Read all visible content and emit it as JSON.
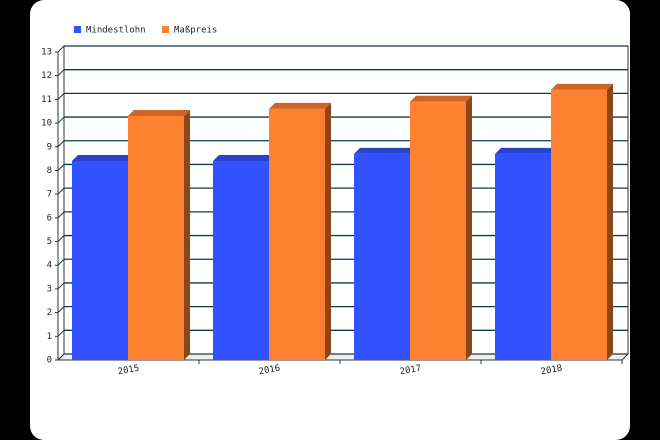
{
  "chart_data": {
    "type": "bar3d",
    "categories": [
      "2015",
      "2016",
      "2017",
      "2018"
    ],
    "series": [
      {
        "name": "Mindestlohn",
        "color": "#3352ff",
        "values": [
          8.4,
          8.4,
          8.7,
          8.7
        ]
      },
      {
        "name": "Maßpreis",
        "color": "#ff8030",
        "values": [
          10.3,
          10.6,
          10.9,
          11.4
        ]
      }
    ],
    "ylim": [
      0,
      13
    ],
    "yticks": [
      0,
      1,
      2,
      3,
      4,
      5,
      6,
      7,
      8,
      9,
      10,
      11,
      12,
      13
    ],
    "grid": true
  }
}
